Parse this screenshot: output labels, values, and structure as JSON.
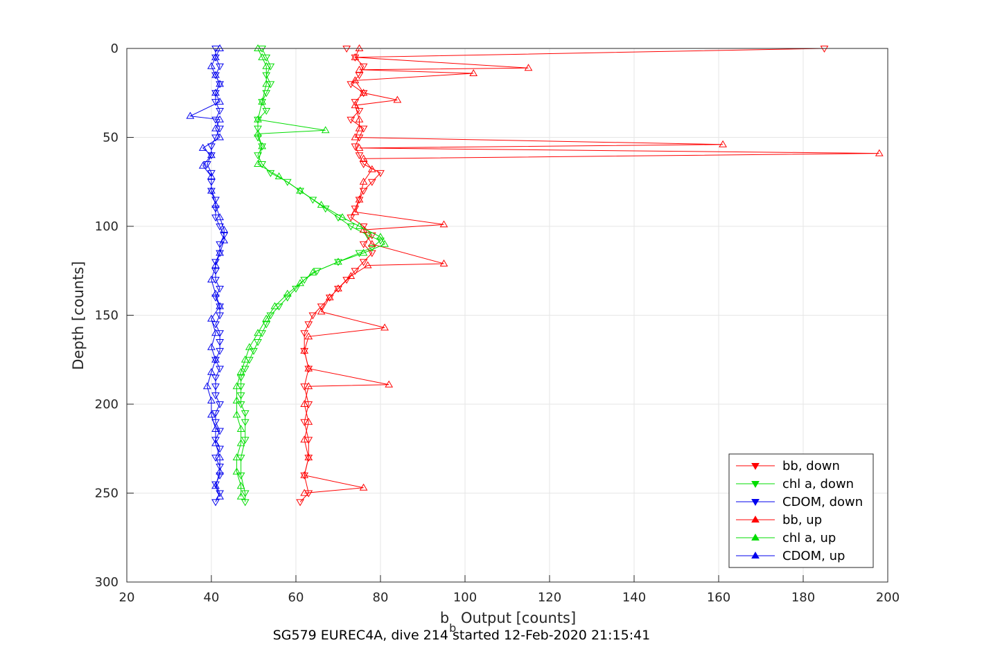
{
  "chart_data": {
    "type": "line",
    "xlabel": "b",
    "xlabel_sub": "b",
    "xlabel_rest": " Output [counts]",
    "ylabel": "Depth [counts]",
    "caption": "SG579 EUREC4A, dive 214 started 12-Feb-2020 21:15:41",
    "xlim": [
      20,
      200
    ],
    "ylim": [
      0,
      300
    ],
    "y_reversed": true,
    "xticks": [
      20,
      40,
      60,
      80,
      100,
      120,
      140,
      160,
      180,
      200
    ],
    "yticks": [
      0,
      50,
      100,
      150,
      200,
      250,
      300
    ],
    "grid": true,
    "legend_position": "bottom-right",
    "series": [
      {
        "name": "bb, down",
        "color": "#ff0000",
        "marker": "triangle-down",
        "points": [
          [
            72,
            0
          ],
          [
            185,
            0
          ],
          [
            74,
            5
          ],
          [
            76,
            10
          ],
          [
            75,
            15
          ],
          [
            73,
            20
          ],
          [
            76,
            25
          ],
          [
            74,
            30
          ],
          [
            75,
            35
          ],
          [
            73,
            40
          ],
          [
            76,
            45
          ],
          [
            75,
            50
          ],
          [
            74,
            55
          ],
          [
            75,
            60
          ],
          [
            76,
            65
          ],
          [
            80,
            70
          ],
          [
            78,
            75
          ],
          [
            76,
            80
          ],
          [
            75,
            85
          ],
          [
            74,
            90
          ],
          [
            73,
            95
          ],
          [
            76,
            100
          ],
          [
            78,
            105
          ],
          [
            76,
            110
          ],
          [
            78,
            115
          ],
          [
            76,
            120
          ],
          [
            74,
            125
          ],
          [
            72,
            130
          ],
          [
            70,
            135
          ],
          [
            68,
            140
          ],
          [
            66,
            145
          ],
          [
            64,
            150
          ],
          [
            63,
            155
          ],
          [
            62,
            160
          ],
          [
            62,
            170
          ],
          [
            63,
            180
          ],
          [
            62,
            190
          ],
          [
            63,
            200
          ],
          [
            62,
            210
          ],
          [
            63,
            220
          ],
          [
            63,
            230
          ],
          [
            62,
            240
          ],
          [
            63,
            250
          ],
          [
            61,
            255
          ]
        ]
      },
      {
        "name": "chl a, down",
        "color": "#00dd00",
        "marker": "triangle-down",
        "points": [
          [
            52,
            0
          ],
          [
            53,
            5
          ],
          [
            54,
            10
          ],
          [
            53,
            15
          ],
          [
            54,
            20
          ],
          [
            53,
            25
          ],
          [
            52,
            30
          ],
          [
            53,
            35
          ],
          [
            51,
            40
          ],
          [
            51,
            45
          ],
          [
            51,
            50
          ],
          [
            52,
            55
          ],
          [
            51,
            60
          ],
          [
            52,
            65
          ],
          [
            54,
            70
          ],
          [
            58,
            75
          ],
          [
            61,
            80
          ],
          [
            64,
            85
          ],
          [
            67,
            90
          ],
          [
            70,
            95
          ],
          [
            73,
            100
          ],
          [
            77,
            105
          ],
          [
            80,
            108
          ],
          [
            78,
            112
          ],
          [
            75,
            115
          ],
          [
            70,
            120
          ],
          [
            65,
            125
          ],
          [
            62,
            130
          ],
          [
            60,
            135
          ],
          [
            58,
            140
          ],
          [
            56,
            145
          ],
          [
            54,
            150
          ],
          [
            53,
            155
          ],
          [
            52,
            160
          ],
          [
            51,
            165
          ],
          [
            50,
            170
          ],
          [
            49,
            175
          ],
          [
            48,
            180
          ],
          [
            47,
            185
          ],
          [
            47,
            190
          ],
          [
            47,
            195
          ],
          [
            47,
            200
          ],
          [
            48,
            205
          ],
          [
            48,
            210
          ],
          [
            48,
            220
          ],
          [
            47,
            230
          ],
          [
            47,
            240
          ],
          [
            48,
            250
          ],
          [
            48,
            255
          ]
        ]
      },
      {
        "name": "CDOM, down",
        "color": "#0000ee",
        "marker": "triangle-down",
        "points": [
          [
            41,
            0
          ],
          [
            41,
            5
          ],
          [
            42,
            10
          ],
          [
            41,
            15
          ],
          [
            42,
            20
          ],
          [
            41,
            25
          ],
          [
            41,
            30
          ],
          [
            42,
            35
          ],
          [
            41,
            40
          ],
          [
            42,
            45
          ],
          [
            41,
            50
          ],
          [
            40,
            55
          ],
          [
            40,
            60
          ],
          [
            39,
            65
          ],
          [
            40,
            70
          ],
          [
            40,
            75
          ],
          [
            40,
            80
          ],
          [
            41,
            85
          ],
          [
            41,
            90
          ],
          [
            41,
            95
          ],
          [
            42,
            100
          ],
          [
            43,
            105
          ],
          [
            42,
            110
          ],
          [
            42,
            115
          ],
          [
            41,
            120
          ],
          [
            41,
            125
          ],
          [
            41,
            130
          ],
          [
            42,
            135
          ],
          [
            41,
            140
          ],
          [
            42,
            145
          ],
          [
            42,
            150
          ],
          [
            41,
            155
          ],
          [
            42,
            160
          ],
          [
            42,
            165
          ],
          [
            42,
            170
          ],
          [
            41,
            175
          ],
          [
            42,
            180
          ],
          [
            41,
            185
          ],
          [
            41,
            190
          ],
          [
            41,
            195
          ],
          [
            42,
            200
          ],
          [
            41,
            205
          ],
          [
            41,
            210
          ],
          [
            42,
            215
          ],
          [
            41,
            220
          ],
          [
            42,
            225
          ],
          [
            41,
            230
          ],
          [
            42,
            235
          ],
          [
            42,
            240
          ],
          [
            41,
            245
          ],
          [
            42,
            250
          ],
          [
            41,
            255
          ]
        ]
      },
      {
        "name": "bb, up",
        "color": "#ff0000",
        "marker": "triangle-up",
        "points": [
          [
            75,
            0
          ],
          [
            74,
            5
          ],
          [
            115,
            11
          ],
          [
            75,
            12
          ],
          [
            102,
            14
          ],
          [
            74,
            18
          ],
          [
            76,
            25
          ],
          [
            84,
            29
          ],
          [
            74,
            32
          ],
          [
            75,
            40
          ],
          [
            75,
            45
          ],
          [
            74,
            50
          ],
          [
            161,
            54
          ],
          [
            75,
            56
          ],
          [
            198,
            59
          ],
          [
            76,
            62
          ],
          [
            78,
            68
          ],
          [
            76,
            75
          ],
          [
            75,
            85
          ],
          [
            74,
            92
          ],
          [
            95,
            99
          ],
          [
            76,
            102
          ],
          [
            78,
            110
          ],
          [
            95,
            121
          ],
          [
            77,
            122
          ],
          [
            73,
            128
          ],
          [
            70,
            135
          ],
          [
            68,
            140
          ],
          [
            66,
            148
          ],
          [
            81,
            157
          ],
          [
            63,
            162
          ],
          [
            62,
            170
          ],
          [
            63,
            180
          ],
          [
            82,
            189
          ],
          [
            63,
            190
          ],
          [
            62,
            200
          ],
          [
            63,
            210
          ],
          [
            62,
            220
          ],
          [
            63,
            230
          ],
          [
            62,
            240
          ],
          [
            76,
            247
          ],
          [
            62,
            250
          ]
        ]
      },
      {
        "name": "chl a, up",
        "color": "#00dd00",
        "marker": "triangle-up",
        "points": [
          [
            51,
            0
          ],
          [
            52,
            5
          ],
          [
            53,
            10
          ],
          [
            53,
            20
          ],
          [
            52,
            30
          ],
          [
            51,
            40
          ],
          [
            67,
            46
          ],
          [
            51,
            48
          ],
          [
            52,
            55
          ],
          [
            51,
            65
          ],
          [
            56,
            72
          ],
          [
            61,
            80
          ],
          [
            66,
            88
          ],
          [
            71,
            95
          ],
          [
            75,
            100
          ],
          [
            80,
            106
          ],
          [
            81,
            110
          ],
          [
            76,
            115
          ],
          [
            70,
            120
          ],
          [
            64,
            126
          ],
          [
            61,
            132
          ],
          [
            58,
            138
          ],
          [
            55,
            145
          ],
          [
            53,
            152
          ],
          [
            51,
            160
          ],
          [
            49,
            168
          ],
          [
            48,
            175
          ],
          [
            47,
            182
          ],
          [
            46,
            190
          ],
          [
            46,
            198
          ],
          [
            46,
            206
          ],
          [
            47,
            214
          ],
          [
            47,
            222
          ],
          [
            46,
            230
          ],
          [
            46,
            238
          ],
          [
            47,
            246
          ],
          [
            47,
            252
          ]
        ]
      },
      {
        "name": "CDOM, up",
        "color": "#0000ee",
        "marker": "triangle-up",
        "points": [
          [
            42,
            0
          ],
          [
            41,
            5
          ],
          [
            40,
            10
          ],
          [
            41,
            15
          ],
          [
            42,
            20
          ],
          [
            41,
            25
          ],
          [
            42,
            30
          ],
          [
            35,
            38
          ],
          [
            42,
            40
          ],
          [
            41,
            45
          ],
          [
            42,
            50
          ],
          [
            38,
            56
          ],
          [
            40,
            60
          ],
          [
            38,
            66
          ],
          [
            40,
            72
          ],
          [
            40,
            80
          ],
          [
            41,
            88
          ],
          [
            42,
            95
          ],
          [
            43,
            102
          ],
          [
            43,
            108
          ],
          [
            42,
            115
          ],
          [
            41,
            122
          ],
          [
            40,
            130
          ],
          [
            41,
            138
          ],
          [
            42,
            145
          ],
          [
            40,
            152
          ],
          [
            41,
            160
          ],
          [
            40,
            168
          ],
          [
            41,
            175
          ],
          [
            40,
            182
          ],
          [
            39,
            190
          ],
          [
            40,
            198
          ],
          [
            40,
            206
          ],
          [
            41,
            214
          ],
          [
            41,
            222
          ],
          [
            42,
            230
          ],
          [
            42,
            238
          ],
          [
            41,
            246
          ],
          [
            42,
            252
          ]
        ]
      }
    ]
  }
}
